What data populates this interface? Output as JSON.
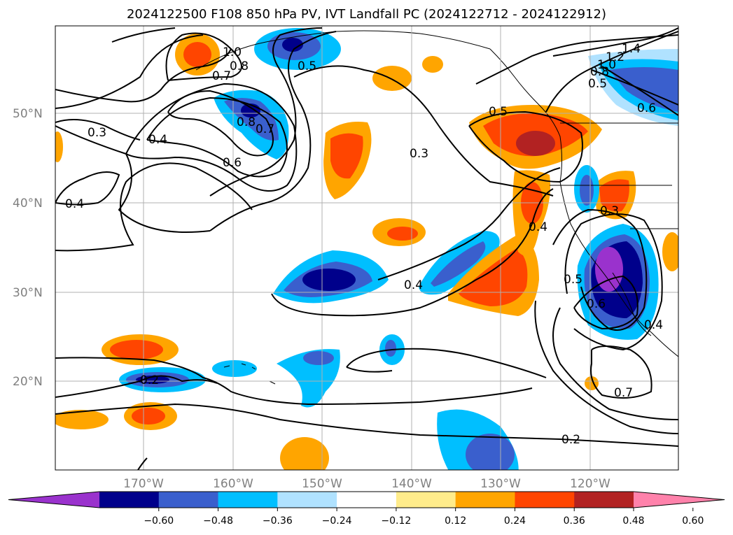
{
  "title": "2024122500 F108 850 hPa PV, IVT Landfall PC (2024122712 - 2024122912)",
  "map": {
    "lat_labels": [
      "50°N",
      "40°N",
      "30°N",
      "20°N"
    ],
    "lon_labels": [
      "170°W",
      "160°W",
      "150°W",
      "140°W",
      "130°W",
      "120°W"
    ],
    "contour_labels": [
      "1.0",
      "0.8",
      "0.7",
      "0.5",
      "0.3",
      "0.4",
      "0.8",
      "0.7",
      "0.6",
      "0.3",
      "0.4",
      "0.5",
      "1.4",
      "1.2",
      "1.0",
      "0.8",
      "0.5",
      "0.6",
      "0.3",
      "0.4",
      "0.4",
      "0.5",
      "0.6",
      "0.7",
      "0.2",
      "0.2",
      "0.4"
    ],
    "contour_line_color": "#000000",
    "grid_color": "#b0b0b0"
  },
  "colorbar": {
    "ticks": [
      "−0.60",
      "−0.48",
      "−0.36",
      "−0.24",
      "−0.12",
      "0.12",
      "0.24",
      "0.36",
      "0.48",
      "0.60"
    ],
    "colors": [
      "#9a32cd",
      "#00008b",
      "#3a5fcd",
      "#00bfff",
      "#b0e2ff",
      "#ffffff",
      "#ffec8b",
      "#ffa500",
      "#ff4500",
      "#b22222",
      "#ff82ab"
    ]
  },
  "chart_data": {
    "type": "heatmap",
    "title": "2024122500 F108 850 hPa PV, IVT Landfall PC (2024122712 - 2024122912)",
    "xlabel": "",
    "ylabel": "",
    "x_ticks": [
      "170°W",
      "160°W",
      "150°W",
      "140°W",
      "130°W",
      "120°W"
    ],
    "y_ticks": [
      "50°N",
      "40°N",
      "30°N",
      "20°N"
    ],
    "color_levels": [
      -0.6,
      -0.48,
      -0.36,
      -0.24,
      -0.12,
      0.12,
      0.24,
      0.36,
      0.48,
      0.6
    ],
    "contour_levels_shown": [
      0.2,
      0.3,
      0.4,
      0.5,
      0.6,
      0.7,
      0.8,
      1.0,
      1.2,
      1.4
    ],
    "colorbar_extend": "both"
  }
}
